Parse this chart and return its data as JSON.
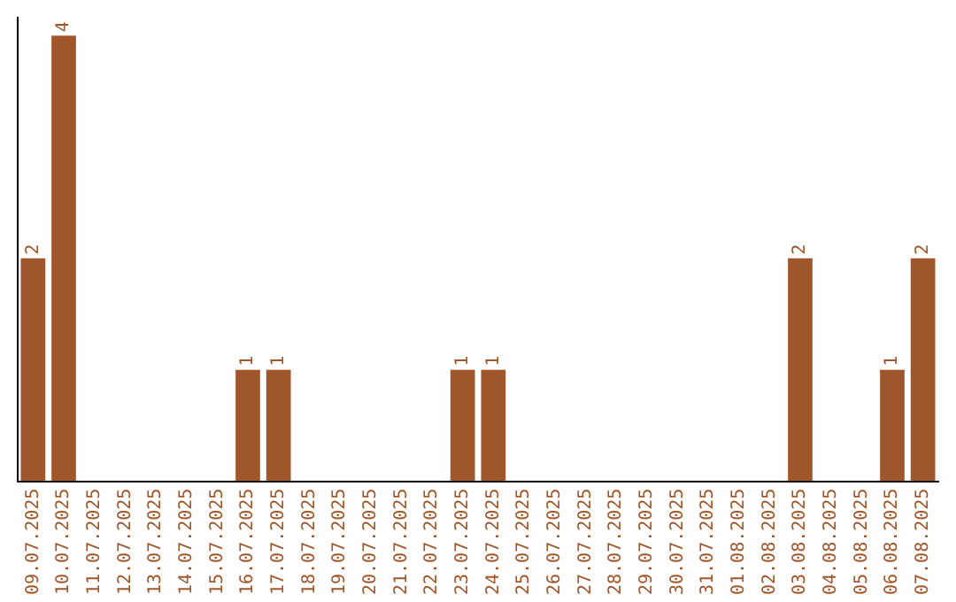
{
  "chart_data": {
    "type": "bar",
    "categories": [
      "09.07.2025",
      "10.07.2025",
      "11.07.2025",
      "12.07.2025",
      "13.07.2025",
      "14.07.2025",
      "15.07.2025",
      "16.07.2025",
      "17.07.2025",
      "18.07.2025",
      "19.07.2025",
      "20.07.2025",
      "21.07.2025",
      "22.07.2025",
      "23.07.2025",
      "24.07.2025",
      "25.07.2025",
      "26.07.2025",
      "27.07.2025",
      "28.07.2025",
      "29.07.2025",
      "30.07.2025",
      "31.07.2025",
      "01.08.2025",
      "02.08.2025",
      "03.08.2025",
      "04.08.2025",
      "05.08.2025",
      "06.08.2025",
      "07.08.2025"
    ],
    "values": [
      2,
      4,
      0,
      0,
      0,
      0,
      0,
      1,
      1,
      0,
      0,
      0,
      0,
      0,
      1,
      1,
      0,
      0,
      0,
      0,
      0,
      0,
      0,
      0,
      0,
      2,
      0,
      0,
      1,
      2
    ],
    "value_labels": [
      "2",
      "4",
      null,
      null,
      null,
      null,
      null,
      "1",
      "1",
      null,
      null,
      null,
      null,
      null,
      "1",
      "1",
      null,
      null,
      null,
      null,
      null,
      null,
      null,
      null,
      null,
      "2",
      null,
      null,
      "1",
      "2"
    ],
    "color": "#a0572b",
    "tick_labels": "x",
    "grid": false,
    "legend": false
  }
}
